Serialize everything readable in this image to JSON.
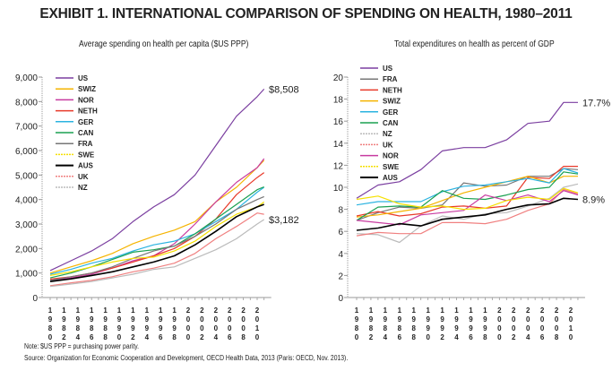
{
  "title": "EXHIBIT 1. INTERNATIONAL COMPARISON OF SPENDING ON HEALTH, 1980–2011",
  "note": "Note: $US PPP = purchasing power parity.",
  "source": "Source: Organization for Economic Cooperation and Development, OECD Health Data, 2013 (Paris: OECD, Nov. 2013).",
  "chart_data": [
    {
      "type": "line",
      "title": "Average spending on health per capita ($US PPP)",
      "xlabel": "",
      "ylabel": "",
      "xlim": [
        1980,
        2011
      ],
      "ylim": [
        0,
        9000
      ],
      "yticks": [
        0,
        1000,
        2000,
        3000,
        4000,
        5000,
        6000,
        7000,
        8000,
        9000
      ],
      "ytick_labels": [
        "0",
        "1,000",
        "2,000",
        "3,000",
        "4,000",
        "5,000",
        "6,000",
        "7,000",
        "8,000",
        "9,000"
      ],
      "xticks": [
        1980,
        1982,
        1984,
        1986,
        1988,
        1990,
        1992,
        1994,
        1996,
        1998,
        2000,
        2002,
        2004,
        2006,
        2008,
        2010
      ],
      "xtick_labels": [
        "1980",
        "1982",
        "1984",
        "1986",
        "1988",
        "1990",
        "1992",
        "1994",
        "1996",
        "1998",
        "2000",
        "2002",
        "2004",
        "2006",
        "2008",
        "2010"
      ],
      "legend_position": "top-left",
      "annotations": [
        {
          "text": "$8,508",
          "series": "US",
          "x": 2011,
          "y": 8508
        },
        {
          "text": "$3,182",
          "series": "NZ",
          "x": 2011,
          "y": 3182
        }
      ],
      "x": [
        1980,
        1983,
        1986,
        1989,
        1992,
        1995,
        1998,
        2001,
        2004,
        2007,
        2010,
        2011
      ],
      "series": [
        {
          "name": "US",
          "color": "#7b3fa0",
          "values": [
            1100,
            1500,
            1900,
            2400,
            3100,
            3700,
            4200,
            5000,
            6200,
            7400,
            8200,
            8508
          ]
        },
        {
          "name": "SWIZ",
          "color": "#f5b400",
          "values": [
            1000,
            1250,
            1500,
            1800,
            2200,
            2500,
            2750,
            3100,
            3900,
            4500,
            5300,
            5600
          ]
        },
        {
          "name": "NOR",
          "color": "#c83ba0",
          "values": [
            700,
            800,
            950,
            1200,
            1500,
            1700,
            2200,
            3000,
            3900,
            4700,
            5300,
            5670
          ]
        },
        {
          "name": "NETH",
          "color": "#e83a2a",
          "values": [
            750,
            850,
            1000,
            1200,
            1450,
            1700,
            2000,
            2500,
            3200,
            4200,
            4900,
            5100
          ]
        },
        {
          "name": "GER",
          "color": "#2bb3e0",
          "values": [
            950,
            1150,
            1400,
            1600,
            1900,
            2150,
            2300,
            2600,
            3100,
            3600,
            4300,
            4500
          ]
        },
        {
          "name": "CAN",
          "color": "#1aa050",
          "values": [
            800,
            1000,
            1250,
            1550,
            1850,
            1950,
            2100,
            2600,
            3200,
            3800,
            4400,
            4520
          ]
        },
        {
          "name": "FRA",
          "color": "#777777",
          "values": [
            700,
            850,
            1000,
            1250,
            1600,
            1900,
            2100,
            2500,
            3000,
            3600,
            4000,
            4120
          ]
        },
        {
          "name": "SWE",
          "color": "#f5e000",
          "values": [
            900,
            1050,
            1250,
            1450,
            1600,
            1650,
            1900,
            2300,
            2900,
            3400,
            3700,
            3900
          ]
        },
        {
          "name": "AUS",
          "color": "#000000",
          "values": [
            650,
            760,
            900,
            1050,
            1250,
            1450,
            1700,
            2150,
            2700,
            3300,
            3700,
            3800
          ]
        },
        {
          "name": "UK",
          "color": "#f08080",
          "values": [
            480,
            600,
            700,
            850,
            1050,
            1200,
            1400,
            1800,
            2400,
            2900,
            3450,
            3400
          ]
        },
        {
          "name": "NZ",
          "color": "#bbbbbb",
          "values": [
            450,
            550,
            650,
            800,
            950,
            1150,
            1250,
            1600,
            1950,
            2400,
            3000,
            3182
          ]
        }
      ]
    },
    {
      "type": "line",
      "title": "Total expenditures on health as percent of GDP",
      "xlabel": "",
      "ylabel": "",
      "xlim": [
        1980,
        2011
      ],
      "ylim": [
        0,
        20
      ],
      "yticks": [
        0,
        2,
        4,
        6,
        8,
        10,
        12,
        14,
        16,
        18,
        20
      ],
      "ytick_labels": [
        "0",
        "2",
        "4",
        "6",
        "8",
        "10",
        "12",
        "14",
        "16",
        "18",
        "20"
      ],
      "xticks": [
        1980,
        1982,
        1984,
        1986,
        1988,
        1990,
        1992,
        1994,
        1996,
        1998,
        2000,
        2002,
        2004,
        2006,
        2008,
        2010
      ],
      "xtick_labels": [
        "1980",
        "1982",
        "1984",
        "1986",
        "1988",
        "1990",
        "1992",
        "1994",
        "1996",
        "1998",
        "2000",
        "2002",
        "2004",
        "2006",
        "2008",
        "2010"
      ],
      "legend_position": "top-left",
      "annotations": [
        {
          "text": "17.7%",
          "series": "US",
          "x": 2011,
          "y": 17.7
        },
        {
          "text": "8.9%",
          "series": "AUS",
          "x": 2011,
          "y": 8.9
        }
      ],
      "x": [
        1980,
        1983,
        1986,
        1989,
        1992,
        1995,
        1998,
        2001,
        2004,
        2007,
        2009,
        2011
      ],
      "series": [
        {
          "name": "US",
          "color": "#7b3fa0",
          "values": [
            9.0,
            10.2,
            10.5,
            11.6,
            13.3,
            13.6,
            13.6,
            14.3,
            15.8,
            16.0,
            17.7,
            17.7
          ]
        },
        {
          "name": "FRA",
          "color": "#777777",
          "values": [
            7.0,
            7.7,
            8.2,
            8.1,
            8.4,
            10.4,
            10.1,
            10.2,
            11.0,
            11.0,
            11.7,
            11.6
          ]
        },
        {
          "name": "NETH",
          "color": "#e83a2a",
          "values": [
            7.4,
            7.8,
            7.4,
            7.6,
            8.2,
            8.3,
            8.1,
            8.3,
            10.9,
            10.8,
            11.9,
            11.9
          ]
        },
        {
          "name": "SWIZ",
          "color": "#f5b400",
          "values": [
            7.3,
            7.5,
            7.8,
            8.1,
            8.8,
            9.5,
            10.0,
            10.5,
            11.0,
            10.4,
            11.0,
            11.0
          ]
        },
        {
          "name": "GER",
          "color": "#2bb3e0",
          "values": [
            8.4,
            8.7,
            8.7,
            8.7,
            9.6,
            10.1,
            10.2,
            10.5,
            10.8,
            10.4,
            11.7,
            11.3
          ]
        },
        {
          "name": "CAN",
          "color": "#1aa050",
          "values": [
            7.0,
            8.2,
            8.3,
            8.2,
            9.7,
            9.0,
            8.9,
            9.3,
            9.8,
            10.0,
            11.4,
            11.2
          ]
        },
        {
          "name": "NZ",
          "color": "#bbbbbb",
          "values": [
            5.8,
            5.7,
            5.0,
            6.5,
            7.4,
            7.1,
            7.6,
            7.7,
            8.3,
            9.0,
            10.0,
            10.3
          ]
        },
        {
          "name": "UK",
          "color": "#f08080",
          "values": [
            5.6,
            5.9,
            5.8,
            5.8,
            6.8,
            6.8,
            6.7,
            7.1,
            7.9,
            8.5,
            9.8,
            9.4
          ]
        },
        {
          "name": "NOR",
          "color": "#c83ba0",
          "values": [
            7.0,
            6.8,
            6.6,
            7.5,
            7.7,
            7.9,
            9.3,
            8.8,
            9.3,
            8.7,
            9.7,
            9.3
          ]
        },
        {
          "name": "SWE",
          "color": "#f5e000",
          "values": [
            8.9,
            9.2,
            8.5,
            8.2,
            8.3,
            8.0,
            8.1,
            8.8,
            9.1,
            8.9,
            9.9,
            9.5
          ]
        },
        {
          "name": "AUS",
          "color": "#000000",
          "values": [
            6.1,
            6.3,
            6.7,
            6.5,
            7.1,
            7.3,
            7.5,
            8.0,
            8.4,
            8.5,
            9.0,
            8.9
          ]
        }
      ]
    }
  ]
}
